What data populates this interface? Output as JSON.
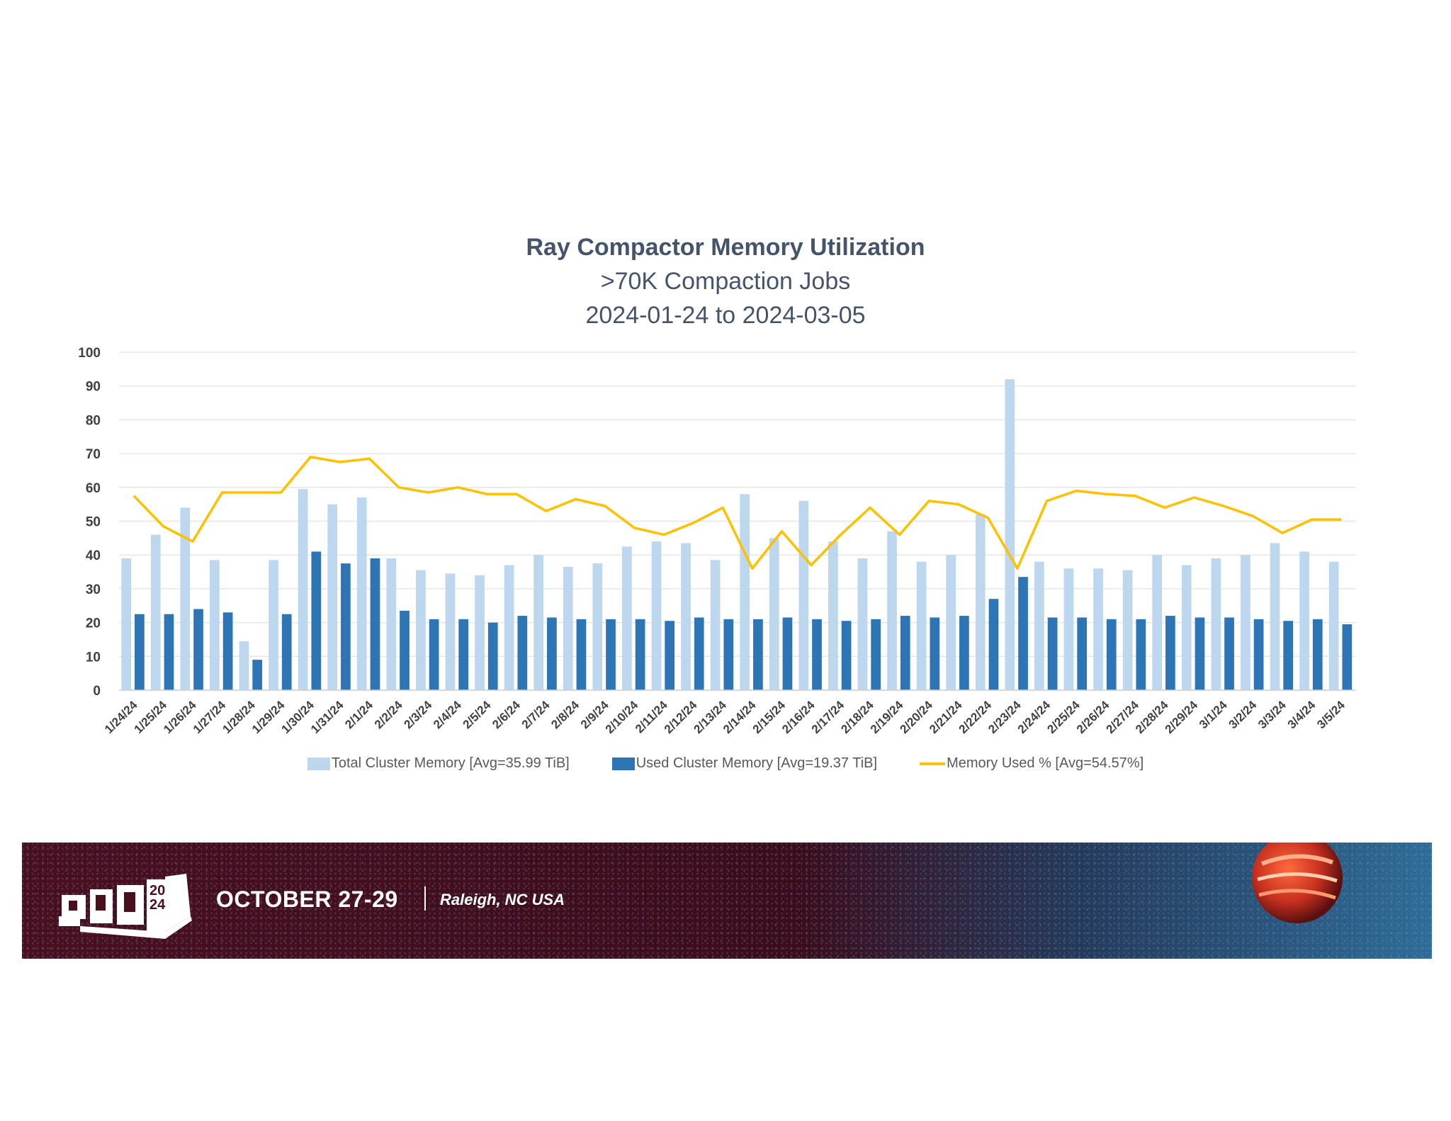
{
  "chart_data": {
    "type": "bar",
    "title": "Ray Compactor Memory Utilization",
    "subtitle": ">70K Compaction Jobs",
    "subtitle2": "2024-01-24 to 2024-03-05",
    "xlabel": "",
    "ylabel": "",
    "ylim": [
      0,
      100
    ],
    "yticks": [
      0,
      10,
      20,
      30,
      40,
      50,
      60,
      70,
      80,
      90,
      100
    ],
    "grid": true,
    "legend_position": "bottom",
    "categories": [
      "1/24/24",
      "1/25/24",
      "1/26/24",
      "1/27/24",
      "1/28/24",
      "1/29/24",
      "1/30/24",
      "1/31/24",
      "2/1/24",
      "2/2/24",
      "2/3/24",
      "2/4/24",
      "2/5/24",
      "2/6/24",
      "2/7/24",
      "2/8/24",
      "2/9/24",
      "2/10/24",
      "2/11/24",
      "2/12/24",
      "2/13/24",
      "2/14/24",
      "2/15/24",
      "2/16/24",
      "2/17/24",
      "2/18/24",
      "2/19/24",
      "2/20/24",
      "2/21/24",
      "2/22/24",
      "2/23/24",
      "2/24/24",
      "2/25/24",
      "2/26/24",
      "2/27/24",
      "2/28/24",
      "2/29/24",
      "3/1/24",
      "3/2/24",
      "3/3/24",
      "3/4/24",
      "3/5/24"
    ],
    "series": [
      {
        "name": "Total Cluster Memory [Avg=35.99 TiB]",
        "type": "bar",
        "color": "#bdd7ee",
        "values": [
          39,
          46,
          54,
          38.5,
          14.5,
          38.5,
          59.5,
          55,
          57,
          39,
          35.5,
          34.5,
          34,
          37,
          40,
          36.5,
          37.5,
          42.5,
          44,
          43.5,
          38.5,
          58,
          45,
          56,
          44,
          39,
          47,
          38,
          40,
          52,
          92,
          38,
          36,
          36,
          35.5,
          40,
          37,
          39,
          40,
          43.5,
          41,
          38
        ]
      },
      {
        "name": "Used Cluster Memory [Avg=19.37 TiB]",
        "type": "bar",
        "color": "#2e75b6",
        "values": [
          22.5,
          22.5,
          24,
          23,
          9,
          22.5,
          41,
          37.5,
          39,
          23.5,
          21,
          21,
          20,
          22,
          21.5,
          21,
          21,
          21,
          20.5,
          21.5,
          21,
          21,
          21.5,
          21,
          20.5,
          21,
          22,
          21.5,
          22,
          27,
          33.5,
          21.5,
          21.5,
          21,
          21,
          22,
          21.5,
          21.5,
          21,
          20.5,
          21,
          19.5
        ]
      },
      {
        "name": "Memory Used % [Avg=54.57%]",
        "type": "line",
        "color": "#ffc000",
        "values": [
          57.5,
          48.5,
          44,
          58.5,
          58.5,
          58.5,
          69,
          67.5,
          68.5,
          60,
          58.5,
          60,
          58,
          58,
          53,
          56.5,
          54.5,
          48,
          46,
          49.5,
          54,
          36,
          47,
          37,
          46,
          54,
          46,
          56,
          55,
          51,
          36,
          56,
          59,
          58,
          57.5,
          54,
          57,
          54.5,
          51.5,
          46.5,
          50.5,
          50.5
        ]
      }
    ]
  },
  "banner": {
    "date": "OCTOBER 27-29",
    "location": "Raleigh, NC USA",
    "logo_year_top": "20",
    "logo_year_bottom": "24",
    "colors": {
      "maroon": "#4a0f1e",
      "blue": "#2f6c96"
    }
  }
}
